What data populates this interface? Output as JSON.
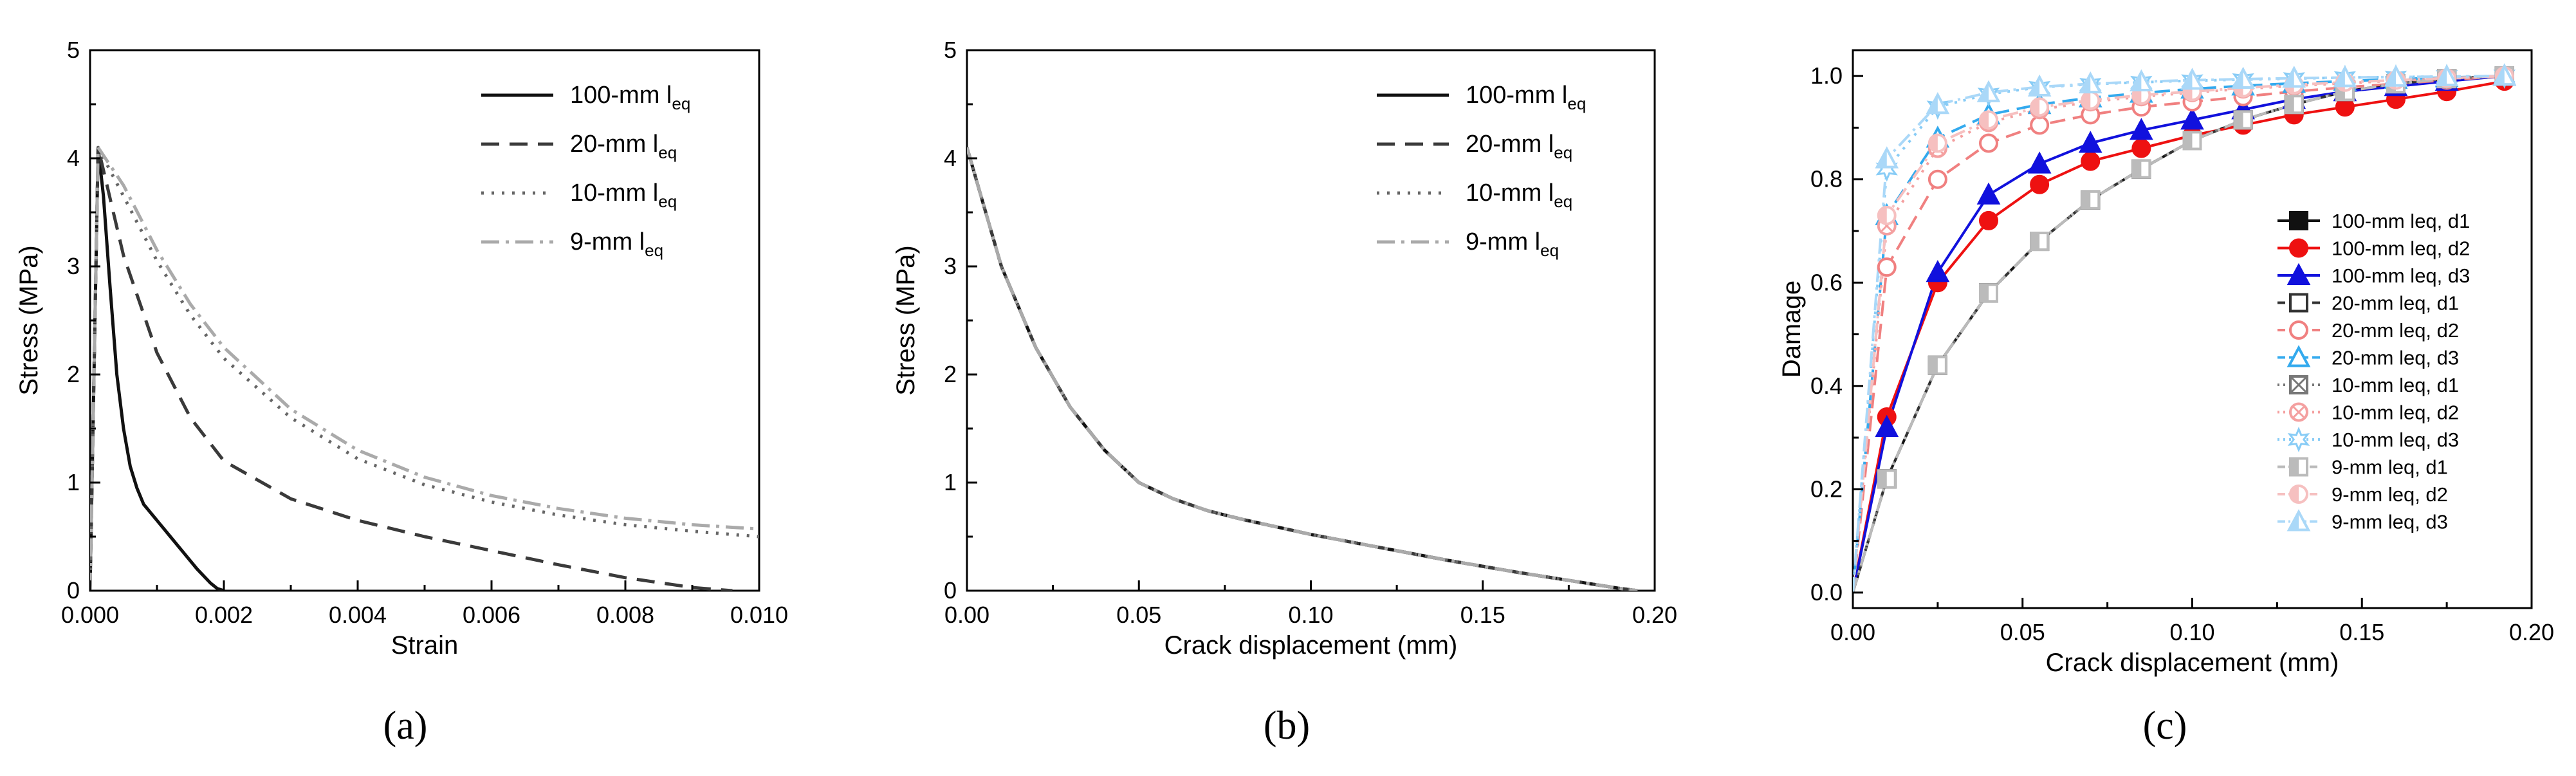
{
  "captions": [
    "(a)",
    "(b)",
    "(c)"
  ],
  "chart_data": [
    {
      "id": "a",
      "type": "line",
      "title": "",
      "xlabel": "Strain",
      "ylabel": "Stress (MPa)",
      "xlim": [
        0,
        0.01
      ],
      "ylim": [
        0,
        5
      ],
      "xticks": [
        0,
        0.002,
        0.004,
        0.006,
        0.008,
        0.01
      ],
      "xtick_labels": [
        "0.000",
        "0.002",
        "0.004",
        "0.006",
        "0.008",
        "0.010"
      ],
      "yticks": [
        0,
        1,
        2,
        3,
        4,
        5
      ],
      "ytick_labels": [
        "0",
        "1",
        "2",
        "3",
        "4",
        "5"
      ],
      "legend_position": "top-right",
      "series": [
        {
          "name": "100-mm",
          "sub": "eq",
          "color": "#111111",
          "dash": "",
          "x": [
            0,
            0.00012,
            0.0002,
            0.0003,
            0.0004,
            0.0005,
            0.0006,
            0.0007,
            0.0008,
            0.001,
            0.0012,
            0.0014,
            0.0016,
            0.0018,
            0.0019,
            0.002
          ],
          "y": [
            0,
            4.1,
            3.65,
            2.8,
            2.0,
            1.5,
            1.15,
            0.95,
            0.8,
            0.65,
            0.5,
            0.35,
            0.2,
            0.07,
            0.02,
            0
          ]
        },
        {
          "name": "20-mm",
          "sub": "eq",
          "color": "#3a3a3a",
          "dash": "28,16",
          "x": [
            0,
            0.00012,
            0.0005,
            0.001,
            0.0015,
            0.002,
            0.003,
            0.004,
            0.005,
            0.006,
            0.007,
            0.008,
            0.009,
            0.0096
          ],
          "y": [
            0,
            4.1,
            3.1,
            2.2,
            1.6,
            1.2,
            0.85,
            0.65,
            0.5,
            0.37,
            0.24,
            0.12,
            0.03,
            0
          ]
        },
        {
          "name": "10-mm",
          "sub": "eq",
          "color": "#666666",
          "dash": "4,12",
          "x": [
            0,
            0.00012,
            0.0005,
            0.001,
            0.0015,
            0.002,
            0.003,
            0.004,
            0.005,
            0.006,
            0.007,
            0.008,
            0.009,
            0.01
          ],
          "y": [
            0,
            4.1,
            3.65,
            3.05,
            2.55,
            2.15,
            1.6,
            1.22,
            0.98,
            0.82,
            0.7,
            0.61,
            0.55,
            0.5
          ]
        },
        {
          "name": "9-mm",
          "sub": "eq",
          "color": "#aaaaaa",
          "dash": "28,10,5,10",
          "x": [
            0,
            0.00012,
            0.0005,
            0.001,
            0.0015,
            0.002,
            0.003,
            0.004,
            0.005,
            0.006,
            0.007,
            0.008,
            0.009,
            0.01
          ],
          "y": [
            0,
            4.1,
            3.75,
            3.15,
            2.65,
            2.25,
            1.68,
            1.3,
            1.05,
            0.88,
            0.76,
            0.67,
            0.61,
            0.57
          ]
        }
      ]
    },
    {
      "id": "b",
      "type": "line",
      "title": "",
      "xlabel": "Crack displacement (mm)",
      "ylabel": "Stress (MPa)",
      "xlim": [
        0,
        0.2
      ],
      "ylim": [
        0,
        5
      ],
      "xticks": [
        0,
        0.05,
        0.1,
        0.15,
        0.2
      ],
      "xtick_labels": [
        "0.00",
        "0.05",
        "0.10",
        "0.15",
        "0.20"
      ],
      "yticks": [
        0,
        1,
        2,
        3,
        4,
        5
      ],
      "ytick_labels": [
        "0",
        "1",
        "2",
        "3",
        "4",
        "5"
      ],
      "legend_position": "top-right",
      "series": [
        {
          "name": "100-mm",
          "sub": "eq",
          "color": "#111111",
          "dash": "",
          "x": [
            0,
            0.005,
            0.01,
            0.02,
            0.03,
            0.04,
            0.05,
            0.06,
            0.07,
            0.08,
            0.1,
            0.12,
            0.14,
            0.16,
            0.18,
            0.19,
            0.195
          ],
          "y": [
            4.1,
            3.55,
            3.0,
            2.25,
            1.7,
            1.3,
            1.0,
            0.85,
            0.74,
            0.66,
            0.52,
            0.4,
            0.28,
            0.17,
            0.07,
            0.02,
            0
          ]
        },
        {
          "name": "20-mm",
          "sub": "eq",
          "color": "#3a3a3a",
          "dash": "28,16",
          "x": [
            0,
            0.005,
            0.01,
            0.02,
            0.03,
            0.04,
            0.05,
            0.06,
            0.07,
            0.08,
            0.1,
            0.12,
            0.14,
            0.16,
            0.18,
            0.19,
            0.195
          ],
          "y": [
            4.1,
            3.55,
            3.0,
            2.25,
            1.7,
            1.3,
            1.0,
            0.85,
            0.74,
            0.66,
            0.52,
            0.4,
            0.28,
            0.17,
            0.07,
            0.02,
            0
          ]
        },
        {
          "name": "10-mm",
          "sub": "eq",
          "color": "#666666",
          "dash": "4,12",
          "x": [
            0,
            0.005,
            0.01,
            0.02,
            0.03,
            0.04,
            0.05,
            0.06,
            0.07,
            0.08,
            0.1,
            0.12,
            0.14,
            0.16,
            0.18,
            0.19,
            0.195
          ],
          "y": [
            4.1,
            3.55,
            3.0,
            2.25,
            1.7,
            1.3,
            1.0,
            0.85,
            0.74,
            0.66,
            0.52,
            0.4,
            0.28,
            0.17,
            0.07,
            0.02,
            0
          ]
        },
        {
          "name": "9-mm",
          "sub": "eq",
          "color": "#aaaaaa",
          "dash": "28,10,5,10",
          "x": [
            0,
            0.005,
            0.01,
            0.02,
            0.03,
            0.04,
            0.05,
            0.06,
            0.07,
            0.08,
            0.1,
            0.12,
            0.14,
            0.16,
            0.18,
            0.19,
            0.195
          ],
          "y": [
            4.1,
            3.55,
            3.0,
            2.25,
            1.7,
            1.3,
            1.0,
            0.85,
            0.74,
            0.66,
            0.52,
            0.4,
            0.28,
            0.17,
            0.07,
            0.02,
            0
          ]
        }
      ]
    },
    {
      "id": "c",
      "type": "line",
      "title": "",
      "xlabel": "Crack displacement (mm)",
      "ylabel": "Damage",
      "xlim": [
        0,
        0.2
      ],
      "ylim": [
        -0.03,
        1.05
      ],
      "xticks": [
        0,
        0.05,
        0.1,
        0.15,
        0.2
      ],
      "xtick_labels": [
        "0.00",
        "0.05",
        "0.10",
        "0.15",
        "0.20"
      ],
      "yticks": [
        0,
        0.2,
        0.4,
        0.6,
        0.8,
        1.0
      ],
      "ytick_labels": [
        "0.0",
        "0.2",
        "0.4",
        "0.6",
        "0.8",
        "1.0"
      ],
      "legend_position": "right",
      "series": [
        {
          "name": "100-mm leq, d1",
          "color": "#111111",
          "dash": "",
          "marker": "square",
          "fill": true,
          "x": [
            0,
            0.01,
            0.025,
            0.04,
            0.055,
            0.07,
            0.085,
            0.1,
            0.115,
            0.13,
            0.145,
            0.16,
            0.175,
            0.192
          ],
          "y": [
            0,
            0.22,
            0.44,
            0.58,
            0.68,
            0.76,
            0.82,
            0.875,
            0.915,
            0.945,
            0.97,
            0.985,
            0.995,
            1.0
          ]
        },
        {
          "name": "100-mm leq, d2",
          "color": "#ee1111",
          "dash": "",
          "marker": "circle",
          "fill": true,
          "x": [
            0,
            0.01,
            0.025,
            0.04,
            0.055,
            0.07,
            0.085,
            0.1,
            0.115,
            0.13,
            0.145,
            0.16,
            0.175,
            0.192
          ],
          "y": [
            0,
            0.34,
            0.6,
            0.72,
            0.79,
            0.835,
            0.86,
            0.885,
            0.905,
            0.925,
            0.94,
            0.955,
            0.97,
            0.99
          ]
        },
        {
          "name": "100-mm leq, d3",
          "color": "#1111dd",
          "dash": "",
          "marker": "triangle",
          "fill": true,
          "x": [
            0,
            0.01,
            0.025,
            0.04,
            0.055,
            0.07,
            0.085,
            0.1,
            0.115,
            0.13,
            0.145,
            0.16,
            0.175,
            0.192
          ],
          "y": [
            0,
            0.32,
            0.62,
            0.77,
            0.83,
            0.87,
            0.895,
            0.915,
            0.935,
            0.955,
            0.97,
            0.98,
            0.99,
            1.0
          ]
        },
        {
          "name": "20-mm leq, d1",
          "color": "#333333",
          "dash": "24,12",
          "marker": "square",
          "fill": false,
          "x": [
            0,
            0.01,
            0.025,
            0.04,
            0.055,
            0.07,
            0.085,
            0.1,
            0.115,
            0.13,
            0.145,
            0.16,
            0.175,
            0.192
          ],
          "y": [
            0,
            0.22,
            0.44,
            0.58,
            0.68,
            0.76,
            0.82,
            0.875,
            0.915,
            0.945,
            0.97,
            0.985,
            0.995,
            1.0
          ]
        },
        {
          "name": "20-mm leq, d2",
          "color": "#f08080",
          "dash": "24,12",
          "marker": "circle",
          "fill": false,
          "x": [
            0,
            0.01,
            0.025,
            0.04,
            0.055,
            0.07,
            0.085,
            0.1,
            0.115,
            0.13,
            0.145,
            0.16,
            0.175,
            0.192
          ],
          "y": [
            0,
            0.63,
            0.8,
            0.87,
            0.905,
            0.925,
            0.94,
            0.95,
            0.96,
            0.97,
            0.978,
            0.985,
            0.992,
            1.0
          ]
        },
        {
          "name": "20-mm leq, d3",
          "color": "#33aaee",
          "dash": "24,12",
          "marker": "triangle",
          "fill": false,
          "x": [
            0,
            0.01,
            0.025,
            0.04,
            0.055,
            0.07,
            0.085,
            0.1,
            0.115,
            0.13,
            0.145,
            0.16,
            0.175,
            0.192
          ],
          "y": [
            0,
            0.73,
            0.88,
            0.925,
            0.945,
            0.958,
            0.967,
            0.975,
            0.981,
            0.986,
            0.99,
            0.994,
            0.997,
            1.0
          ]
        },
        {
          "name": "10-mm leq, d1",
          "color": "#777777",
          "dash": "4,10",
          "marker": "xsquare",
          "fill": false,
          "x": [
            0,
            0.01,
            0.025,
            0.04,
            0.055,
            0.07,
            0.085,
            0.1,
            0.115,
            0.13,
            0.145,
            0.16,
            0.175,
            0.192
          ],
          "y": [
            0,
            0.22,
            0.44,
            0.58,
            0.68,
            0.76,
            0.82,
            0.875,
            0.915,
            0.945,
            0.97,
            0.985,
            0.995,
            1.0
          ]
        },
        {
          "name": "10-mm leq, d2",
          "color": "#f4a0a0",
          "dash": "4,10",
          "marker": "xcircle",
          "fill": false,
          "x": [
            0,
            0.01,
            0.025,
            0.04,
            0.055,
            0.07,
            0.085,
            0.1,
            0.115,
            0.13,
            0.145,
            0.16,
            0.175,
            0.192
          ],
          "y": [
            0,
            0.71,
            0.86,
            0.91,
            0.935,
            0.95,
            0.96,
            0.968,
            0.975,
            0.981,
            0.986,
            0.991,
            0.995,
            1.0
          ]
        },
        {
          "name": "10-mm leq, d3",
          "color": "#88ccf6",
          "dash": "4,10",
          "marker": "star",
          "fill": false,
          "x": [
            0,
            0.01,
            0.025,
            0.04,
            0.055,
            0.07,
            0.085,
            0.1,
            0.115,
            0.13,
            0.145,
            0.16,
            0.175,
            0.192
          ],
          "y": [
            0,
            0.82,
            0.94,
            0.965,
            0.978,
            0.984,
            0.988,
            0.991,
            0.993,
            0.995,
            0.997,
            0.998,
            0.999,
            1.0
          ]
        },
        {
          "name": "9-mm leq, d1",
          "color": "#bbbbbb",
          "dash": "24,8,4,8",
          "marker": "halfsquare",
          "fill": false,
          "x": [
            0,
            0.01,
            0.025,
            0.04,
            0.055,
            0.07,
            0.085,
            0.1,
            0.115,
            0.13,
            0.145,
            0.16,
            0.175,
            0.192
          ],
          "y": [
            0,
            0.22,
            0.44,
            0.58,
            0.68,
            0.76,
            0.82,
            0.875,
            0.915,
            0.945,
            0.97,
            0.985,
            0.995,
            1.0
          ]
        },
        {
          "name": "9-mm leq, d2",
          "color": "#f6c0c0",
          "dash": "24,8,4,8",
          "marker": "halfcircle",
          "fill": false,
          "x": [
            0,
            0.01,
            0.025,
            0.04,
            0.055,
            0.07,
            0.085,
            0.1,
            0.115,
            0.13,
            0.145,
            0.16,
            0.175,
            0.192
          ],
          "y": [
            0,
            0.73,
            0.87,
            0.915,
            0.94,
            0.953,
            0.963,
            0.97,
            0.977,
            0.983,
            0.988,
            0.992,
            0.996,
            1.0
          ]
        },
        {
          "name": "9-mm leq, d3",
          "color": "#aad8f8",
          "dash": "24,8,4,8",
          "marker": "halftriangle",
          "fill": false,
          "x": [
            0,
            0.01,
            0.025,
            0.04,
            0.055,
            0.07,
            0.085,
            0.1,
            0.115,
            0.13,
            0.145,
            0.16,
            0.175,
            0.192
          ],
          "y": [
            0,
            0.84,
            0.945,
            0.968,
            0.979,
            0.985,
            0.989,
            0.992,
            0.994,
            0.996,
            0.997,
            0.998,
            0.999,
            1.0
          ]
        }
      ]
    }
  ]
}
